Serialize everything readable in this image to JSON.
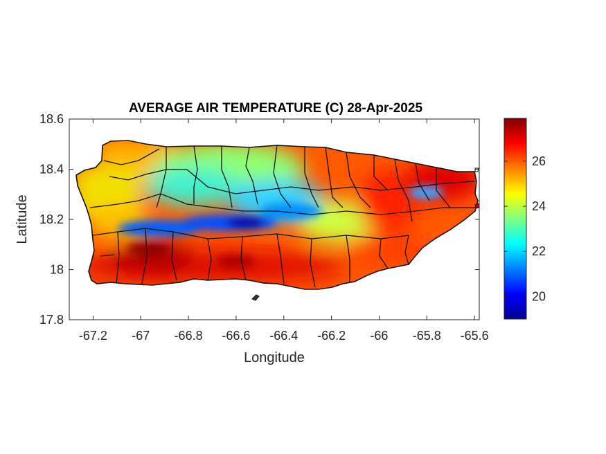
{
  "figure": {
    "title": "AVERAGE AIR TEMPERATURE (C) 28-Apr-2025",
    "xlabel": "Longitude",
    "ylabel": "Latitude"
  },
  "map": {
    "region": "Puerto Rico",
    "xlim": [
      -67.3,
      -65.58
    ],
    "ylim": [
      17.8,
      18.6
    ],
    "xticks": [
      -67.2,
      -67,
      -66.8,
      -66.6,
      -66.4,
      -66.2,
      -66,
      -65.8,
      -65.6
    ],
    "xtick_labels": [
      "-67.2",
      "-67",
      "-66.8",
      "-66.6",
      "-66.4",
      "-66.2",
      "-66",
      "-65.8",
      "-65.6"
    ],
    "yticks": [
      17.8,
      18,
      18.2,
      18.4,
      18.6
    ],
    "ytick_labels": [
      "17.8",
      "18",
      "18.2",
      "18.4",
      "18.6"
    ],
    "grid": false,
    "colormap": "jet"
  },
  "colorbar": {
    "range": [
      19,
      27.9
    ],
    "ticks": [
      20,
      22,
      24,
      26
    ],
    "tick_labels": [
      "20",
      "22",
      "24",
      "26"
    ],
    "colors": [
      "#00008f",
      "#0000ff",
      "#0080ff",
      "#00ffff",
      "#80ff80",
      "#ffff00",
      "#ff8000",
      "#ff0000",
      "#800000"
    ]
  }
}
